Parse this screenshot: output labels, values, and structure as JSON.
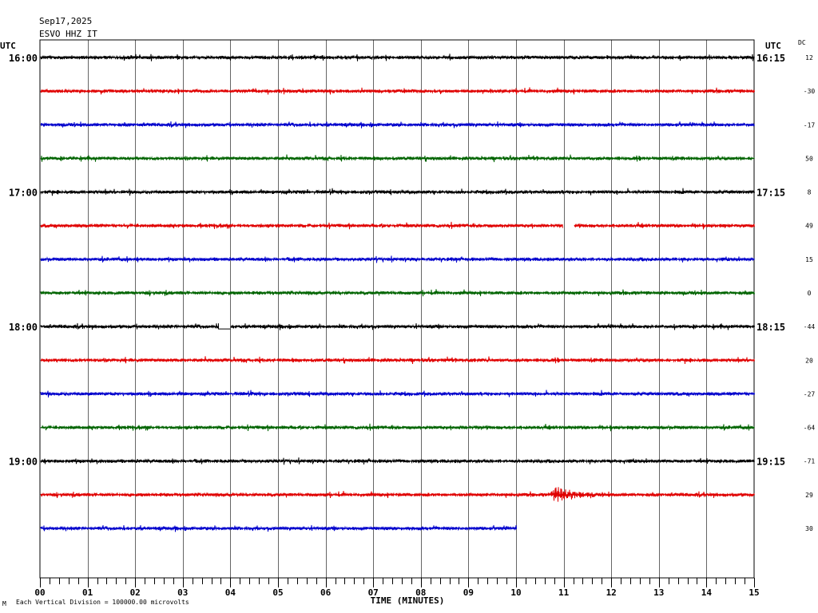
{
  "header": {
    "date": "Sep17,2025",
    "station": "ESVO HHZ IT",
    "utc_left": "UTC",
    "utc_right": "UTC",
    "dc_label": "DC"
  },
  "footer": {
    "mark": "M",
    "scale_note": "Each Vertical Division = 100000.00 microvolts"
  },
  "chart_data": {
    "type": "line",
    "title": "ESVO HHZ IT",
    "date": "Sep17,2025",
    "xlabel": "TIME (MINUTES)",
    "xlim": [
      0,
      15
    ],
    "x_ticks": [
      "00",
      "01",
      "02",
      "03",
      "04",
      "05",
      "06",
      "07",
      "08",
      "09",
      "10",
      "11",
      "12",
      "13",
      "14",
      "15"
    ],
    "grid": true,
    "colors": [
      "#000000",
      "#e00000",
      "#0000cc",
      "#006400"
    ],
    "left_time_labels": [
      {
        "row": 0,
        "label": "16:00"
      },
      {
        "row": 4,
        "label": "17:00"
      },
      {
        "row": 8,
        "label": "18:00"
      },
      {
        "row": 12,
        "label": "19:00"
      }
    ],
    "right_time_labels": [
      {
        "row": 0,
        "label": "16:15"
      },
      {
        "row": 4,
        "label": "17:15"
      },
      {
        "row": 8,
        "label": "18:15"
      },
      {
        "row": 12,
        "label": "19:15"
      }
    ],
    "traces": [
      {
        "row": 0,
        "dc": "12",
        "color": "#000000",
        "end_min": 15
      },
      {
        "row": 1,
        "dc": "-30",
        "color": "#e00000",
        "end_min": 15
      },
      {
        "row": 2,
        "dc": "-17",
        "color": "#0000cc",
        "end_min": 15
      },
      {
        "row": 3,
        "dc": "50",
        "color": "#006400",
        "end_min": 15
      },
      {
        "row": 4,
        "dc": "8",
        "color": "#000000",
        "end_min": 15
      },
      {
        "row": 5,
        "dc": "49",
        "color": "#e00000",
        "end_min": 15,
        "gaps": [
          [
            10.98,
            11.22
          ]
        ]
      },
      {
        "row": 6,
        "dc": "15",
        "color": "#0000cc",
        "end_min": 15
      },
      {
        "row": 7,
        "dc": "0",
        "color": "#006400",
        "end_min": 15
      },
      {
        "row": 8,
        "dc": "-44",
        "color": "#000000",
        "end_min": 15,
        "gaps": [
          [
            3.75,
            4.0
          ]
        ]
      },
      {
        "row": 9,
        "dc": "20",
        "color": "#e00000",
        "end_min": 15
      },
      {
        "row": 10,
        "dc": "-27",
        "color": "#0000cc",
        "end_min": 15
      },
      {
        "row": 11,
        "dc": "-64",
        "color": "#006400",
        "end_min": 15
      },
      {
        "row": 12,
        "dc": "-71",
        "color": "#000000",
        "end_min": 15
      },
      {
        "row": 13,
        "dc": "29",
        "color": "#e00000",
        "end_min": 15,
        "events": [
          {
            "start_min": 10.7,
            "end_min": 11.7,
            "amplitude": "large"
          }
        ]
      },
      {
        "row": 14,
        "dc": "30",
        "color": "#0000cc",
        "end_min": 10.0
      }
    ]
  }
}
